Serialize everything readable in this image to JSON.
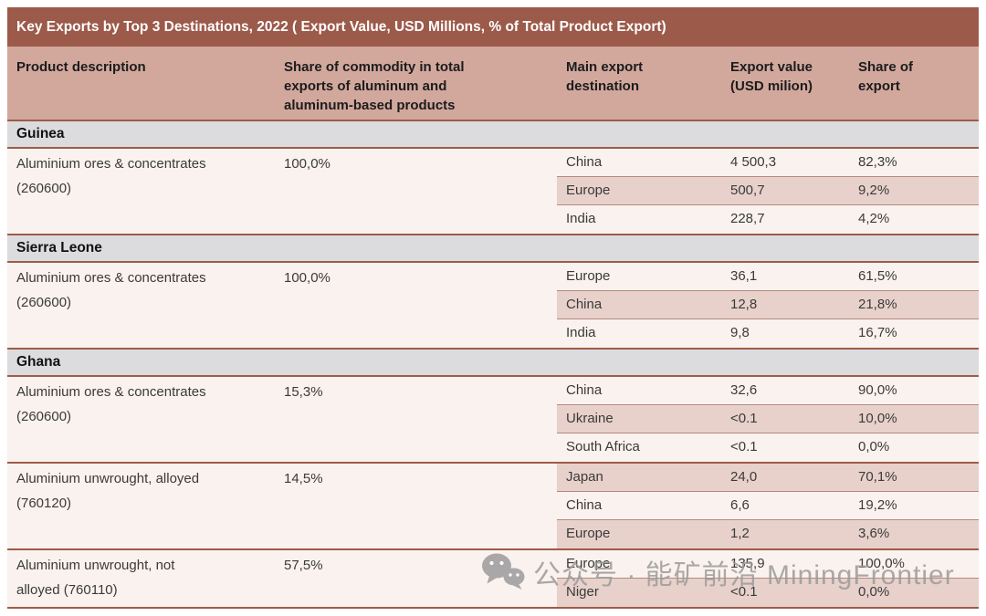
{
  "title": "Key Exports by Top 3 Destinations, 2022 ( Export Value, USD Millions, % of Total Product Export)",
  "columns": {
    "product": "Product description",
    "share": "Share of commodity in total exports of aluminum and aluminum-based products",
    "destination": "Main export destination",
    "value": "Export value (USD milion)",
    "share_of_export": "Share of export"
  },
  "countries": [
    {
      "name": "Guinea",
      "products": [
        {
          "description": "Aluminium ores & concentrates (260600)",
          "share": "100,0%",
          "destinations": [
            {
              "name": "China",
              "value": "4 500,3",
              "share": "82,3%"
            },
            {
              "name": "Europe",
              "value": "500,7",
              "share": "9,2%"
            },
            {
              "name": "India",
              "value": "228,7",
              "share": "4,2%"
            }
          ]
        }
      ]
    },
    {
      "name": "Sierra Leone",
      "products": [
        {
          "description": "Aluminium ores & concentrates (260600)",
          "share": "100,0%",
          "destinations": [
            {
              "name": "Europe",
              "value": "36,1",
              "share": "61,5%"
            },
            {
              "name": "China",
              "value": "12,8",
              "share": "21,8%"
            },
            {
              "name": "India",
              "value": "9,8",
              "share": "16,7%"
            }
          ]
        }
      ]
    },
    {
      "name": "Ghana",
      "products": [
        {
          "description": "Aluminium ores & concentrates (260600)",
          "share": "15,3%",
          "destinations": [
            {
              "name": "China",
              "value": "32,6",
              "share": "90,0%"
            },
            {
              "name": "Ukraine",
              "value": "<0.1",
              "share": "10,0%"
            },
            {
              "name": "South Africa",
              "value": "<0.1",
              "share": "0,0%"
            }
          ]
        },
        {
          "description": "Aluminium unwrought, alloyed (760120)",
          "share": "14,5%",
          "destinations": [
            {
              "name": "Japan",
              "value": "24,0",
              "share": "70,1%"
            },
            {
              "name": "China",
              "value": "6,6",
              "share": "19,2%"
            },
            {
              "name": "Europe",
              "value": "1,2",
              "share": "3,6%"
            }
          ]
        },
        {
          "description": "Aluminium unwrought, not alloyed (760110)",
          "share": "57,5%",
          "destinations": [
            {
              "name": "Europe",
              "value": "135,9",
              "share": "100,0%"
            },
            {
              "name": "Niger",
              "value": "<0.1",
              "share": "0,0%"
            }
          ]
        }
      ]
    }
  ],
  "watermark": {
    "icon": "wechat-icon",
    "text": "公众号 · 能矿前沿 MiningFrontier"
  },
  "colors": {
    "title_bar": "#9c5a4a",
    "header_band": "#d2a89d",
    "country_band": "#dcdcdf",
    "row_light": "#faf2ee",
    "row_shaded": "#e8d1cb",
    "border_thick": "#9e5c49",
    "border_thin": "#b4897c",
    "text_body": "#3a3a3a",
    "title_text": "#ffffff",
    "watermark_gray": "#9b9b9b"
  }
}
